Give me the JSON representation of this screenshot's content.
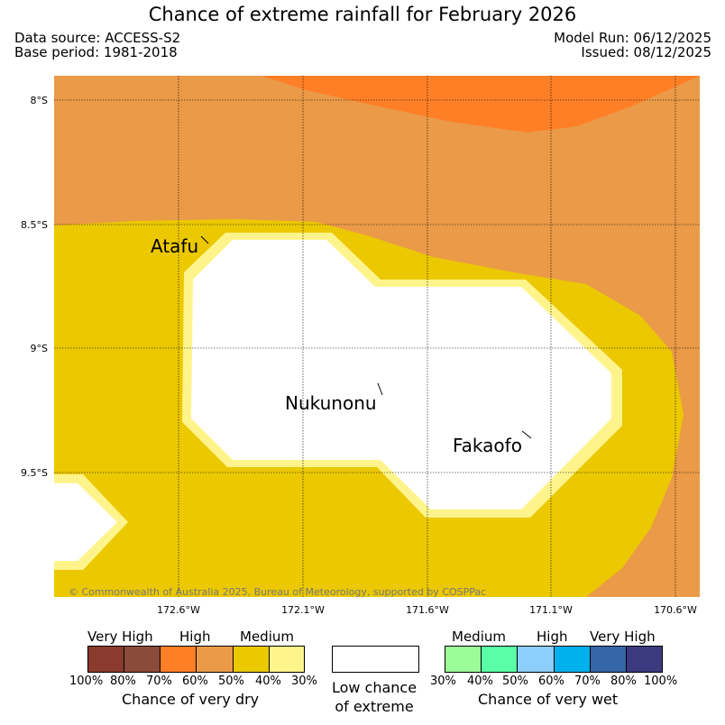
{
  "header": {
    "title": "Chance of extreme rainfall for February 2026",
    "data_source": "Data source: ACCESS-S2",
    "base_period": "Base period: 1981-2018",
    "model_run": "Model Run: 06/12/2025",
    "issued": "Issued: 08/12/2025"
  },
  "map": {
    "lat_labels": [
      "8°S",
      "8.5°S",
      "9°S",
      "9.5°S"
    ],
    "lon_labels": [
      "172.6°W",
      "172.1°W",
      "171.6°W",
      "171.1°W",
      "170.6°W"
    ],
    "places": {
      "atafu": "Atafu",
      "nukunonu": "Nukunonu",
      "fakaofo": "Fakaofo"
    },
    "copyright": "© Commonwealth of Australia 2025, Bureau of Meteorology, supported by COSPPac",
    "colors": {
      "very_high_dry_top": "#ff7f27",
      "high_dry": "#eb9a48",
      "medium_dry": "#ebc800",
      "low_medium_dry": "#fff48c",
      "background": "#ffffff"
    }
  },
  "legend": {
    "dry": {
      "captions": [
        "Very High",
        "High",
        "Medium"
      ],
      "percents": [
        "100%",
        "80%",
        "70%",
        "60%",
        "50%",
        "40%",
        "30%"
      ],
      "title": "Chance of very dry",
      "colors": [
        "#8b3a2e",
        "#8b4b3a",
        "#ff7f27",
        "#eb9a48",
        "#ebc800",
        "#fff48c"
      ]
    },
    "low": {
      "line1": "Low chance",
      "line2": "of extreme"
    },
    "wet": {
      "captions": [
        "Medium",
        "High",
        "Very High"
      ],
      "percents": [
        "30%",
        "40%",
        "50%",
        "60%",
        "70%",
        "80%",
        "100%"
      ],
      "title": "Chance of very wet",
      "colors": [
        "#9cfc98",
        "#59fea6",
        "#8ccffc",
        "#00b1ee",
        "#3566a8",
        "#3b3a7e"
      ]
    }
  }
}
